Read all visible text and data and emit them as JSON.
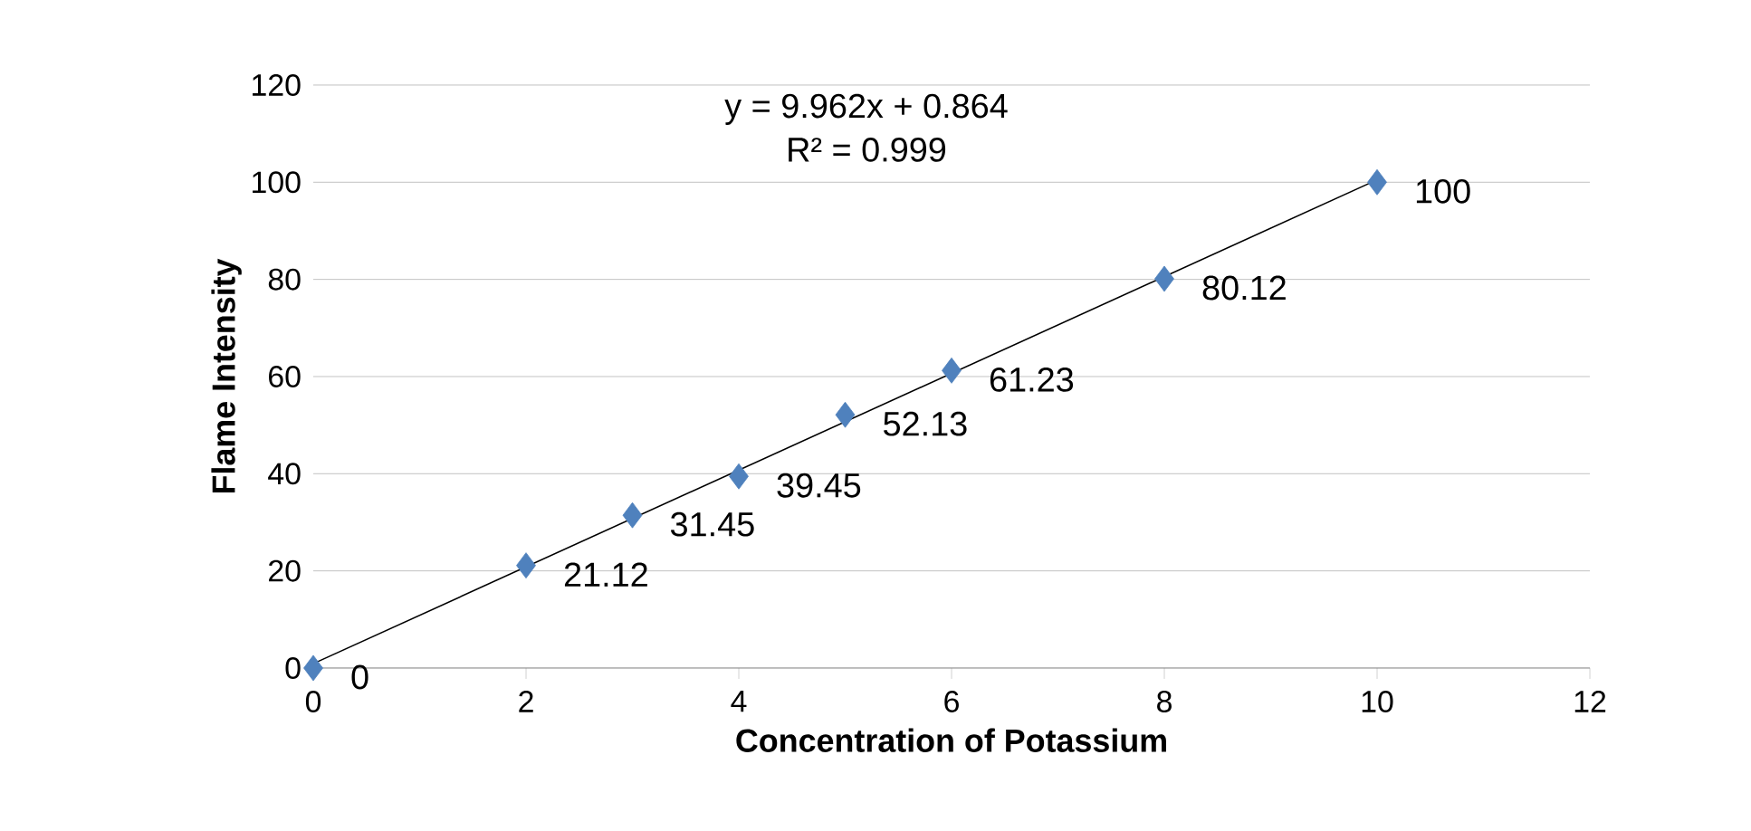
{
  "chart_data": {
    "type": "scatter",
    "xlabel": "Concentration of Potassium",
    "ylabel": "Flame Intensity",
    "annotations": [
      "y = 9.962x + 0.864",
      "R² = 0.999"
    ],
    "series": [
      {
        "color": "#4f81bd",
        "marker": "diamond",
        "x": [
          0,
          2,
          3,
          4,
          5,
          6,
          8,
          10
        ],
        "values": [
          0,
          21.12,
          31.45,
          39.45,
          52.13,
          61.23,
          80.12,
          100
        ],
        "value_labels": [
          "0",
          "21.12",
          "31.45",
          "39.45",
          "52.13",
          "61.23",
          "80.12",
          "100"
        ]
      },
      {
        "type": "line",
        "color": "#000000",
        "marker": "none",
        "line_style": "solid",
        "x": [
          0,
          10
        ],
        "values": [
          0.9,
          100.5
        ]
      }
    ],
    "xlim": [
      0,
      12
    ],
    "ylim": [
      0,
      120
    ],
    "xticks": [
      0,
      2,
      4,
      6,
      8,
      10,
      12
    ],
    "yticks": [
      0,
      20,
      40,
      60,
      80,
      100,
      120
    ],
    "grid": "y"
  }
}
